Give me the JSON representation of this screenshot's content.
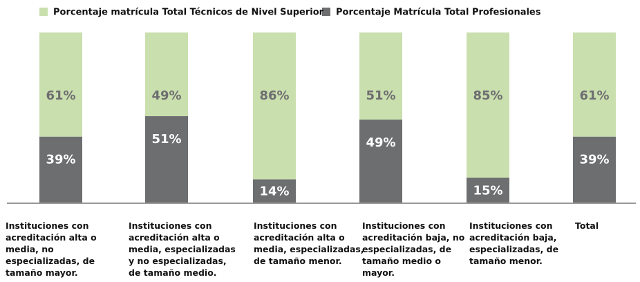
{
  "chart_data": {
    "type": "bar",
    "stacked": true,
    "categories": [
      "Instituciones con acreditación alta o media, no especializadas, de tamaño mayor.",
      "Instituciones con acreditación alta o media, especializadas y no especializadas, de tamaño medio.",
      "Instituciones con acreditación alta o media, especializadas, de tamaño menor.",
      "Instituciones con acreditación baja, no especializadas, de tamaño medio o mayor.",
      "Instituciones con acreditación baja, especializadas, de tamaño menor.",
      "Total"
    ],
    "series": [
      {
        "name": "Porcentaje Matrícula Total Profesionales",
        "color": "#6d6e70",
        "values": [
          39,
          51,
          14,
          49,
          15,
          39
        ],
        "value_labels": [
          "39%",
          "51%",
          "14%",
          "49%",
          "15%",
          "39%"
        ]
      },
      {
        "name": "Porcentaje matrícula Total Técnicos de Nivel Superior",
        "color": "#cadfae",
        "values": [
          61,
          49,
          86,
          51,
          85,
          61
        ],
        "value_labels": [
          "61%",
          "49%",
          "86%",
          "51%",
          "85%",
          "61%"
        ]
      }
    ],
    "ylim": [
      0,
      100
    ],
    "legend": "top"
  }
}
